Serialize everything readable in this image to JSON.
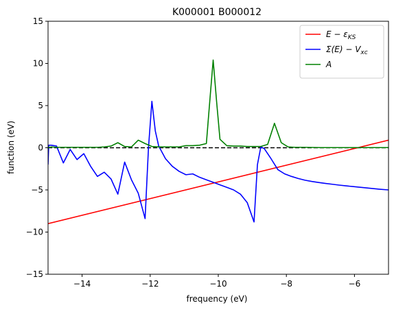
{
  "chart_data": {
    "type": "line",
    "title": "K000001 B000012",
    "xlabel": "frequency (eV)",
    "ylabel": "function (eV)",
    "xlim": [
      -15,
      -5
    ],
    "ylim": [
      -15,
      15
    ],
    "xticks": [
      -14,
      -12,
      -10,
      -8,
      -6
    ],
    "yticks": [
      -15,
      -10,
      -5,
      0,
      5,
      10,
      15
    ],
    "xtick_labels": [
      "−14",
      "−12",
      "−10",
      "−8",
      "−6"
    ],
    "ytick_labels": [
      "−15",
      "−10",
      "−5",
      "0",
      "5",
      "10",
      "15"
    ],
    "grid": false,
    "legend_position": "top-right",
    "series": [
      {
        "name": "E − ε_KS",
        "color": "#ff0000",
        "x": [
          -15,
          -5
        ],
        "y": [
          -9.0,
          0.9
        ]
      },
      {
        "name": "Σ(E) − V_xc",
        "color": "#0000ff",
        "x": [
          -15,
          -14.98,
          -14.9,
          -14.75,
          -14.55,
          -14.35,
          -14.15,
          -13.95,
          -13.75,
          -13.55,
          -13.35,
          -13.15,
          -12.95,
          -12.75,
          -12.55,
          -12.35,
          -12.15,
          -12.05,
          -11.95,
          -11.85,
          -11.75,
          -11.55,
          -11.35,
          -11.15,
          -10.95,
          -10.75,
          -10.55,
          -10.35,
          -10.15,
          -9.95,
          -9.75,
          -9.55,
          -9.35,
          -9.15,
          -8.95,
          -8.85,
          -8.75,
          -8.65,
          -8.45,
          -8.25,
          -8.05,
          -7.85,
          -7.65,
          -7.45,
          -7.25,
          -7.05,
          -6.85,
          -6.65,
          -6.45,
          -6.25,
          -6.05,
          -5.85,
          -5.65,
          -5.45,
          -5.25,
          -5.0
        ],
        "y": [
          -2.0,
          0.3,
          0.3,
          0.2,
          -1.8,
          -0.2,
          -1.4,
          -0.7,
          -2.2,
          -3.4,
          -2.9,
          -3.7,
          -5.5,
          -1.7,
          -3.8,
          -5.4,
          -8.4,
          0.0,
          5.5,
          2.0,
          0.2,
          -1.3,
          -2.2,
          -2.8,
          -3.2,
          -3.1,
          -3.5,
          -3.8,
          -4.1,
          -4.4,
          -4.7,
          -5.0,
          -5.5,
          -6.5,
          -8.8,
          -2.0,
          0.1,
          -0.1,
          -1.3,
          -2.6,
          -3.1,
          -3.4,
          -3.65,
          -3.85,
          -4.0,
          -4.12,
          -4.23,
          -4.33,
          -4.43,
          -4.52,
          -4.6,
          -4.68,
          -4.76,
          -4.84,
          -4.92,
          -5.0
        ]
      },
      {
        "name": "A",
        "color": "#008000",
        "x": [
          -15,
          -14.9,
          -14.75,
          -14.55,
          -14.35,
          -14.15,
          -13.95,
          -13.75,
          -13.55,
          -13.35,
          -13.15,
          -12.95,
          -12.75,
          -12.55,
          -12.35,
          -12.15,
          -11.95,
          -11.75,
          -11.55,
          -11.35,
          -11.15,
          -10.95,
          -10.75,
          -10.55,
          -10.35,
          -10.25,
          -10.15,
          -10.05,
          -9.95,
          -9.75,
          -9.55,
          -9.35,
          -9.15,
          -8.95,
          -8.75,
          -8.55,
          -8.35,
          -8.15,
          -7.95,
          -7.75,
          -7.5,
          -7.0,
          -6.5,
          -6.0,
          -5.5,
          -5.0
        ],
        "y": [
          0.0,
          0.1,
          0.05,
          0.05,
          0.05,
          0.05,
          0.05,
          0.05,
          0.05,
          0.1,
          0.2,
          0.6,
          0.15,
          0.1,
          0.9,
          0.5,
          0.15,
          0.1,
          0.1,
          0.1,
          0.1,
          0.25,
          0.25,
          0.3,
          0.5,
          5.5,
          10.4,
          5.5,
          1.0,
          0.25,
          0.2,
          0.2,
          0.15,
          0.15,
          0.15,
          0.4,
          2.9,
          0.6,
          0.1,
          0.05,
          0.05,
          0.02,
          0.02,
          0.02,
          0.02,
          0.02
        ]
      }
    ],
    "reference_line": {
      "y": 0,
      "style": "dashed",
      "color": "#000000"
    },
    "legend": [
      {
        "label_main": "E − ε",
        "label_sub": "KS",
        "color": "#ff0000"
      },
      {
        "label_main": "Σ(E) − V",
        "label_sub": "xc",
        "color": "#0000ff"
      },
      {
        "label_main": "A",
        "label_sub": "",
        "color": "#008000"
      }
    ]
  }
}
